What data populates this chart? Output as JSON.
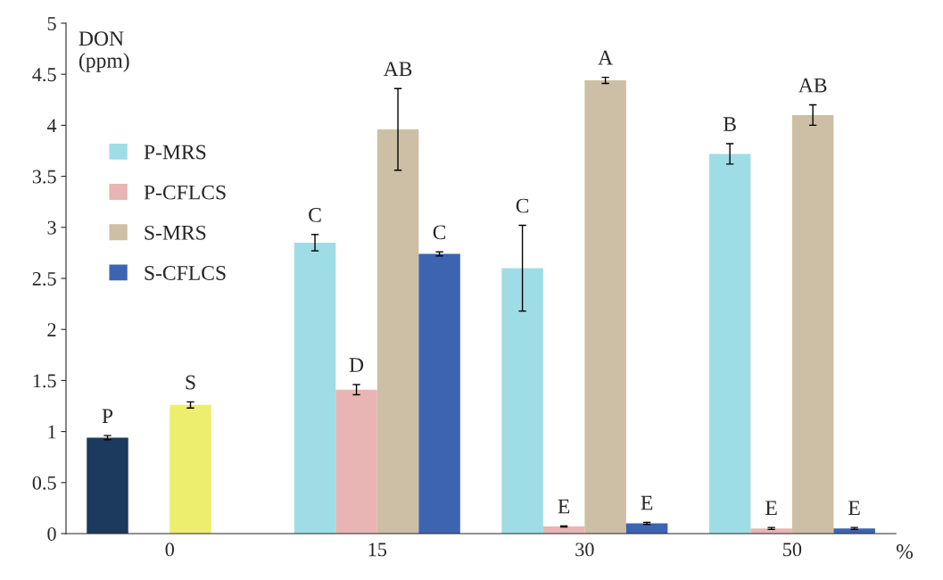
{
  "chart_data": {
    "type": "bar",
    "ylabel": "DON\n(ppm)",
    "xlabel": "%",
    "categories": [
      "0",
      "15",
      "30",
      "50"
    ],
    "series": [
      {
        "name": "P-MRS",
        "color": "#9fdde6",
        "colors": [
          "#1c3a5e",
          "#9fdde6",
          "#9fdde6",
          "#9fdde6"
        ],
        "values": [
          0.94,
          2.85,
          2.6,
          3.72
        ],
        "errors": [
          0.02,
          0.08,
          0.42,
          0.1
        ],
        "value_labels": [
          "P",
          "C",
          "C",
          "B"
        ]
      },
      {
        "name": "P-CFLCS",
        "color": "#e8b4b4",
        "values": [
          null,
          1.41,
          0.07,
          0.05
        ],
        "errors": [
          null,
          0.05,
          0.005,
          0.01
        ],
        "value_labels": [
          null,
          "D",
          "E",
          "E"
        ]
      },
      {
        "name": "S-MRS",
        "color": "#cdbfa5",
        "colors": [
          "#eeee6e",
          "#cdbfa5",
          "#cdbfa5",
          "#cdbfa5"
        ],
        "values": [
          1.26,
          3.96,
          4.44,
          4.1
        ],
        "errors": [
          0.03,
          0.4,
          0.03,
          0.1
        ],
        "value_labels": [
          "S",
          "AB",
          "A",
          "AB"
        ]
      },
      {
        "name": "S-CFLCS",
        "color": "#3d64b0",
        "values": [
          null,
          2.74,
          0.1,
          0.05
        ],
        "errors": [
          null,
          0.02,
          0.01,
          0.01
        ],
        "value_labels": [
          null,
          "C",
          "E",
          "E"
        ]
      }
    ],
    "ylim": [
      0,
      5
    ],
    "yticks": [
      0,
      0.5,
      1,
      1.5,
      2,
      2.5,
      3,
      3.5,
      4,
      4.5,
      5
    ],
    "grid": false,
    "legend": "upper left"
  }
}
